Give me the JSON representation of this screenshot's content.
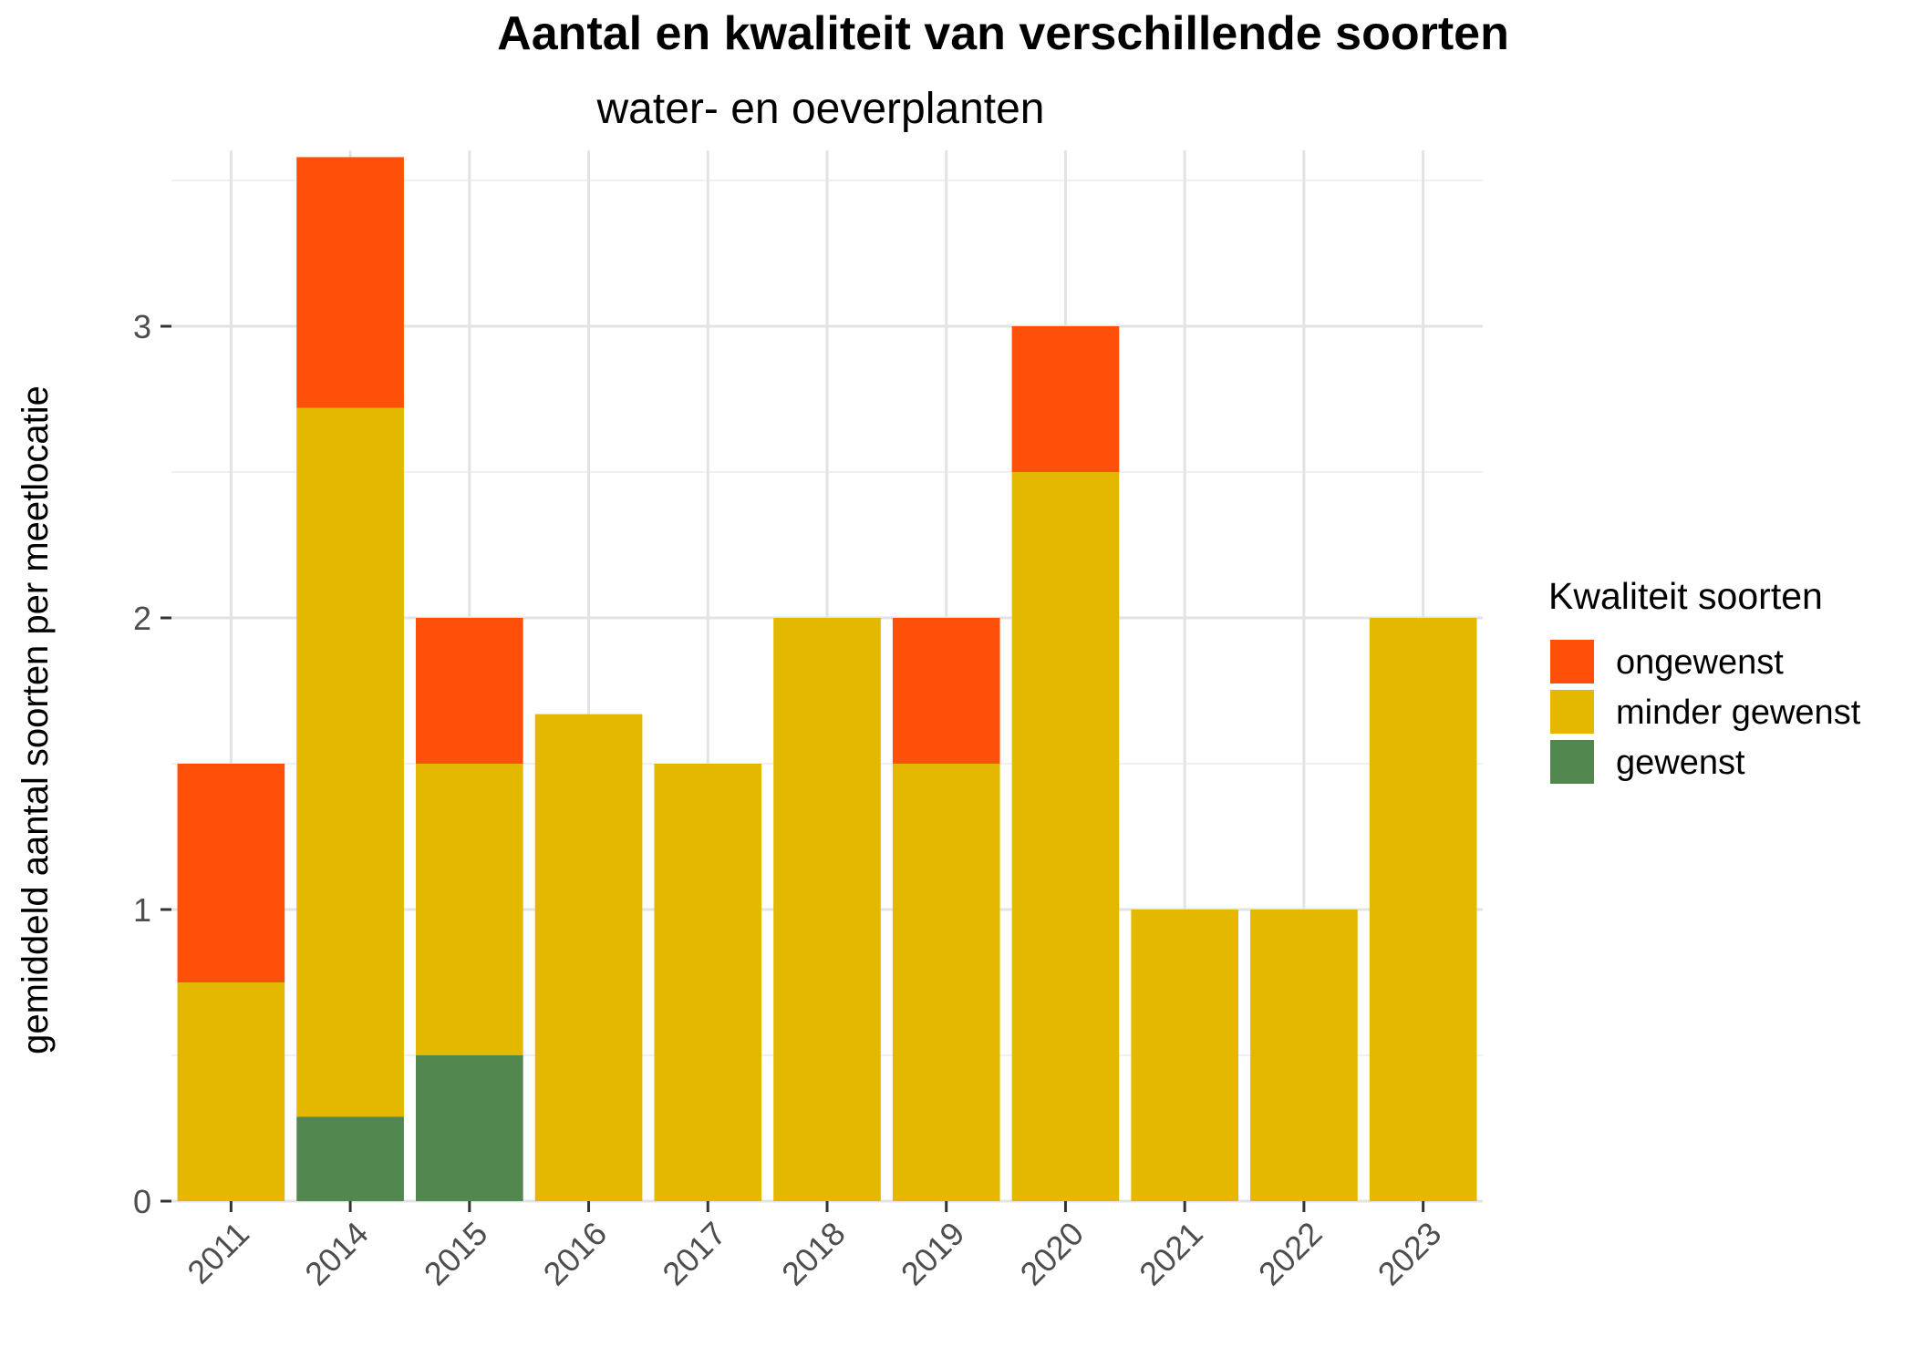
{
  "chart_data": {
    "type": "bar",
    "stacked": true,
    "title": "Aantal en kwaliteit van verschillende soorten",
    "subtitle": "water- en oeverplanten",
    "xlabel": "",
    "ylabel": "gemiddeld aantal soorten per meetlocatie",
    "categories": [
      "2011",
      "2014",
      "2015",
      "2016",
      "2017",
      "2018",
      "2019",
      "2020",
      "2021",
      "2022",
      "2023"
    ],
    "ylim": [
      0,
      3.6
    ],
    "y_ticks": [
      0,
      1,
      2,
      3
    ],
    "grid": true,
    "legend": {
      "title": "Kwaliteit soorten",
      "placement": "right"
    },
    "series": [
      {
        "name": "gewenst",
        "color": "#52874f",
        "values": [
          0,
          0.29,
          0.5,
          0,
          0,
          0,
          0,
          0,
          0,
          0,
          0
        ]
      },
      {
        "name": "minder gewenst",
        "color": "#e5b800",
        "values": [
          0.75,
          2.43,
          1.0,
          1.67,
          1.5,
          2.0,
          1.5,
          2.5,
          1.0,
          1.0,
          2.0
        ]
      },
      {
        "name": "ongewenst",
        "color": "#ff500a",
        "values": [
          0.75,
          0.86,
          0.5,
          0,
          0,
          0,
          0.5,
          0.5,
          0,
          0,
          0
        ]
      }
    ],
    "legend_order": [
      "ongewenst",
      "minder gewenst",
      "gewenst"
    ]
  }
}
